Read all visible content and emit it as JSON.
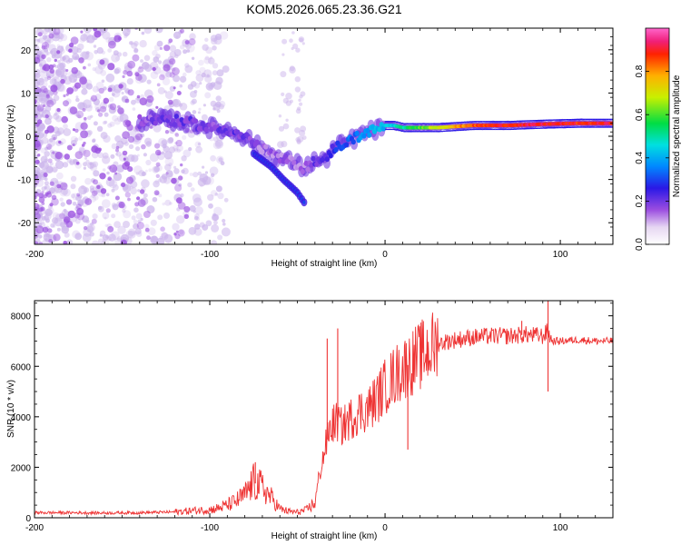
{
  "chart_data": [
    {
      "type": "heatmap",
      "title": "KOM5.2026.065.23.36.G21",
      "xlabel": "Height of straight line (km)",
      "ylabel": "Frequency (Hz)",
      "xlim": [
        -200,
        130
      ],
      "ylim": [
        -25,
        25
      ],
      "xticks": [
        -200,
        -100,
        0,
        100
      ],
      "xtick_labels": [
        "-200",
        "-100",
        "0",
        "100"
      ],
      "yticks": [
        -20,
        -10,
        0,
        10,
        20
      ],
      "ytick_labels": [
        "-20",
        "-10",
        "0",
        "10",
        "20"
      ],
      "colorbar": {
        "label": "Normalized spectral amplitude",
        "range": [
          0,
          1
        ],
        "ticks": [
          0.0,
          0.2,
          0.4,
          0.6,
          0.8
        ],
        "tick_labels": [
          "0.0",
          "0.2",
          "0.4",
          "0.6",
          "0.8"
        ]
      },
      "ridge": {
        "x": [
          -140,
          -125,
          -110,
          -100,
          -90,
          -80,
          -72,
          -65,
          -58,
          -52,
          -46,
          -40,
          -35,
          -30,
          -25,
          -20,
          -15,
          -10,
          -5,
          0,
          5,
          10,
          20,
          30,
          50,
          70,
          90,
          110,
          130
        ],
        "y": [
          3.5,
          4,
          3,
          2,
          1.5,
          0,
          -2.5,
          -4,
          -5.5,
          -6,
          -7.5,
          -5.5,
          -6,
          -3,
          -2,
          -1,
          0,
          1,
          1.5,
          2.5,
          2.5,
          2,
          2,
          2,
          2.5,
          2.5,
          2.8,
          3,
          3
        ],
        "amplitude": [
          0.15,
          0.2,
          0.2,
          0.18,
          0.2,
          0.2,
          0.15,
          0.15,
          0.15,
          0.12,
          0.15,
          0.2,
          0.22,
          0.25,
          0.3,
          0.32,
          0.35,
          0.38,
          0.4,
          0.42,
          0.45,
          0.5,
          0.6,
          0.7,
          0.85,
          0.9,
          0.9,
          0.88,
          0.9
        ]
      },
      "branch": {
        "x": [
          -75,
          -65,
          -58,
          -50,
          -45
        ],
        "y": [
          -4,
          -7,
          -10,
          -13,
          -16
        ]
      }
    },
    {
      "type": "line",
      "xlabel": "Height of straight line (km)",
      "ylabel": "SNR (10 * v/v)",
      "xlim": [
        -200,
        130
      ],
      "ylim": [
        0,
        8600
      ],
      "xticks": [
        -200,
        -100,
        0,
        100
      ],
      "xtick_labels": [
        "-200",
        "-100",
        "0",
        "100"
      ],
      "yticks": [
        0,
        2000,
        4000,
        6000,
        8000
      ],
      "ytick_labels": [
        "0",
        "2000",
        "4000",
        "6000",
        "8000"
      ],
      "series": [
        {
          "name": "SNR",
          "color": "#ee3333",
          "x": [
            -200,
            -180,
            -160,
            -140,
            -120,
            -110,
            -100,
            -95,
            -90,
            -85,
            -80,
            -75,
            -70,
            -65,
            -60,
            -55,
            -50,
            -45,
            -40,
            -38,
            -35,
            -32,
            -30,
            -27,
            -25,
            -20,
            -15,
            -10,
            -5,
            0,
            5,
            10,
            20,
            30,
            40,
            50,
            60,
            70,
            80,
            90,
            93,
            95,
            100,
            110,
            120,
            130
          ],
          "y": [
            200,
            200,
            190,
            200,
            230,
            280,
            320,
            380,
            500,
            650,
            900,
            1400,
            1200,
            800,
            350,
            250,
            220,
            300,
            600,
            1500,
            2500,
            3400,
            3700,
            3800,
            3600,
            3900,
            4200,
            4300,
            4700,
            5200,
            5600,
            5900,
            6400,
            6900,
            7050,
            7150,
            7200,
            7200,
            7250,
            7200,
            7400,
            7000,
            7000,
            7050,
            7000,
            7000
          ],
          "spikes": [
            {
              "x": -33,
              "y": 7100
            },
            {
              "x": -27,
              "y": 7500
            },
            {
              "x": -74,
              "y": 2200
            },
            {
              "x": 93,
              "y": 8600
            },
            {
              "x": 93,
              "y": 5000
            },
            {
              "x": 13,
              "y": 2700
            },
            {
              "x": 78,
              "y": 7800
            }
          ]
        }
      ]
    }
  ]
}
